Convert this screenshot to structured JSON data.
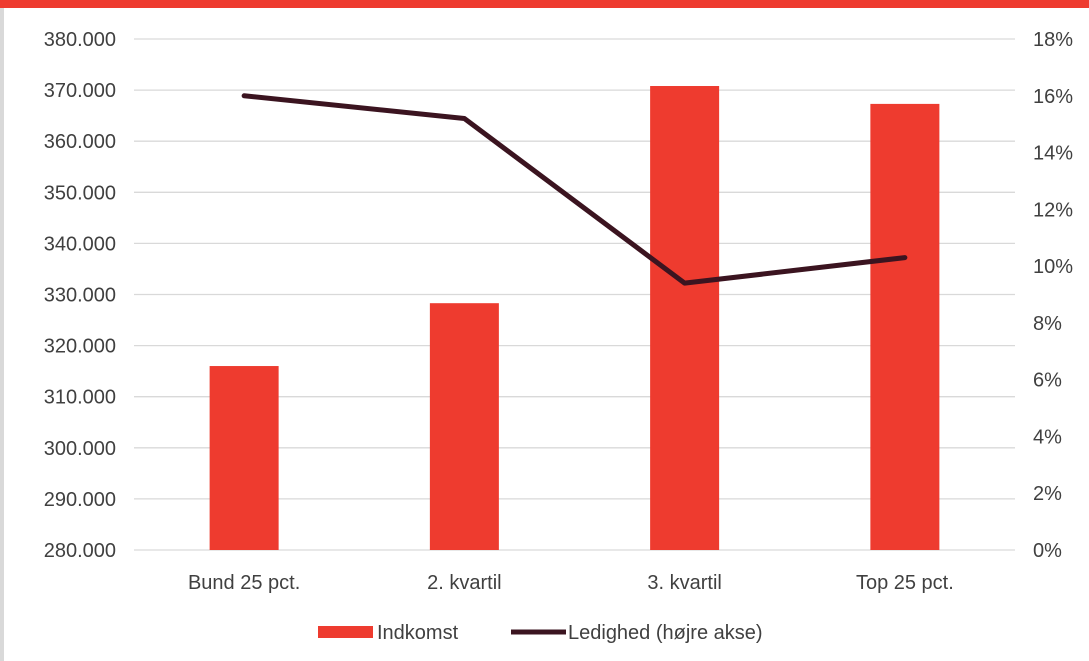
{
  "colors": {
    "bar": "#ee3b2f",
    "line": "#3b1420",
    "grid": "#d9d9d9",
    "text": "#404040",
    "top_bar": "#ee3b2f"
  },
  "chart_data": {
    "type": "bar",
    "categories": [
      "Bund 25 pct.",
      "2. kvartil",
      "3. kvartil",
      "Top 25 pct."
    ],
    "series": [
      {
        "name": "Indkomst",
        "type": "bar",
        "axis": "left",
        "values": [
          316000,
          328300,
          370800,
          367300
        ]
      },
      {
        "name": "Ledighed (højre akse)",
        "type": "line",
        "axis": "right",
        "values": [
          0.16,
          0.152,
          0.094,
          0.103
        ]
      }
    ],
    "y_left": {
      "min": 280000,
      "max": 380000,
      "step": 10000,
      "tick_labels": [
        "280.000",
        "290.000",
        "300.000",
        "310.000",
        "320.000",
        "330.000",
        "340.000",
        "350.000",
        "360.000",
        "370.000",
        "380.000"
      ]
    },
    "y_right": {
      "min": 0,
      "max": 0.18,
      "step": 0.02,
      "tick_labels": [
        "0%",
        "2%",
        "4%",
        "6%",
        "8%",
        "10%",
        "12%",
        "14%",
        "16%",
        "18%"
      ]
    },
    "grid": true,
    "legend_position": "bottom",
    "legend": [
      "Indkomst",
      "Ledighed (højre akse)"
    ]
  }
}
